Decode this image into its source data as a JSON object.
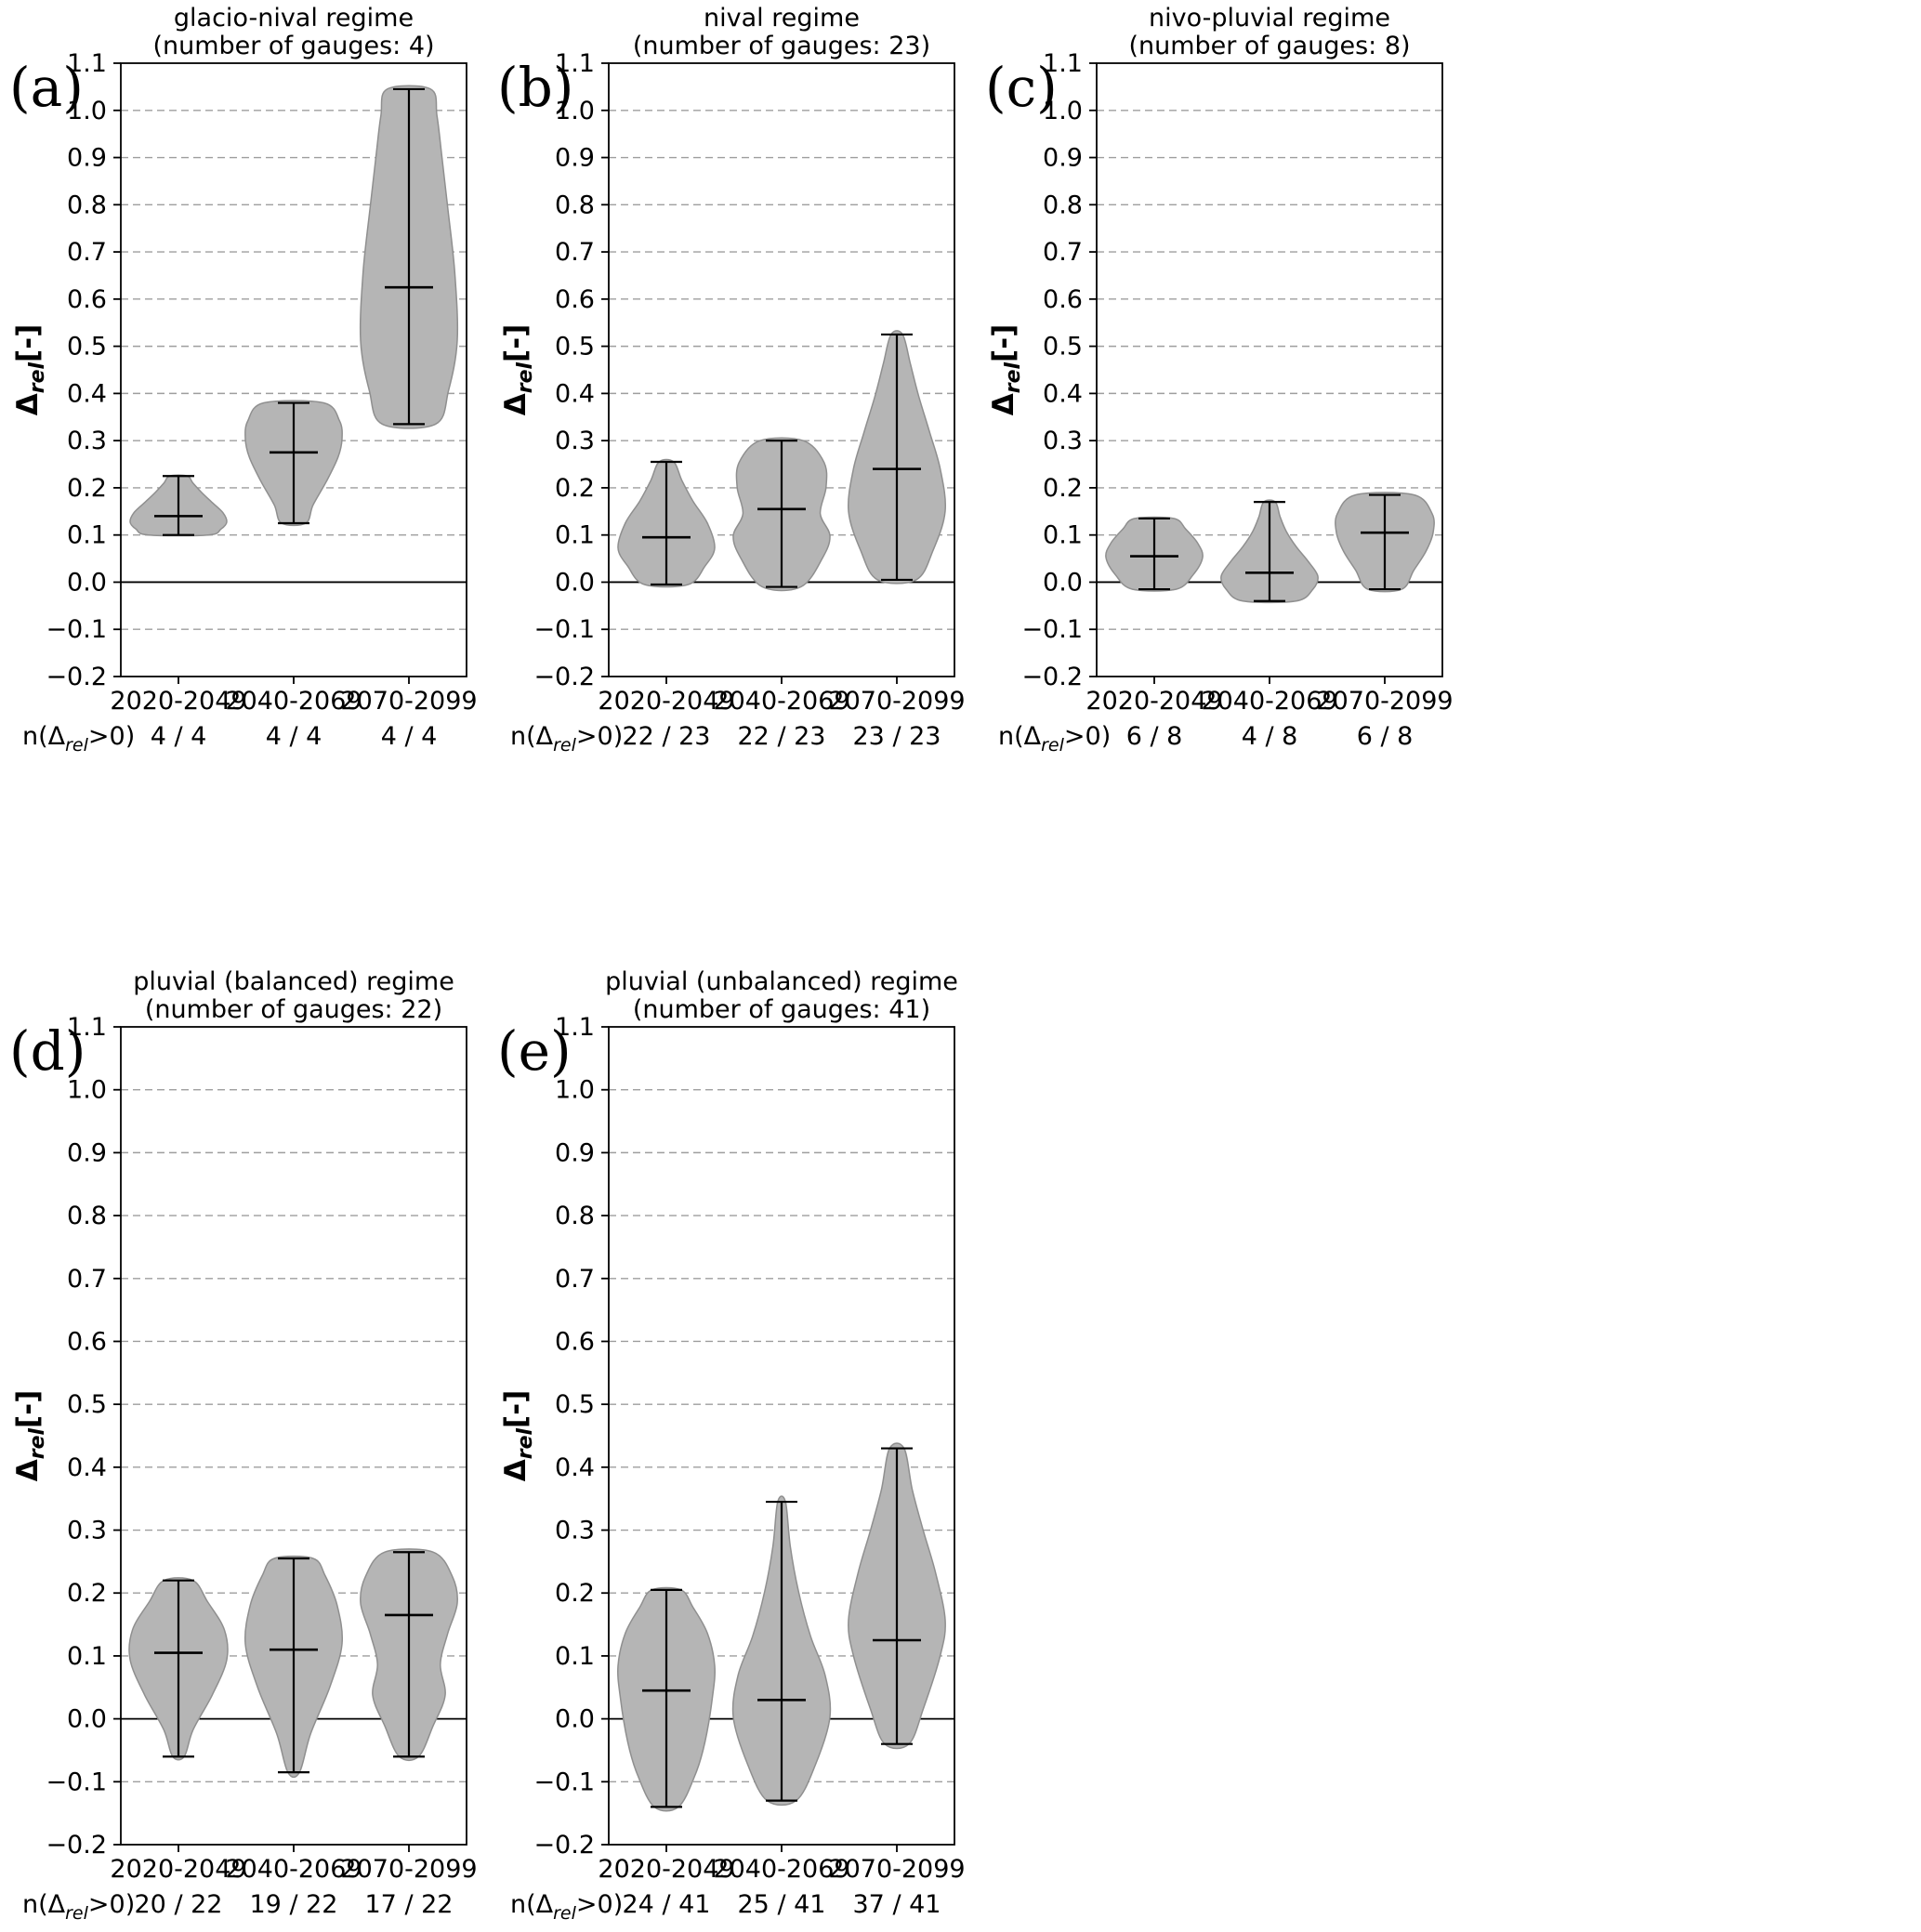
{
  "figure": {
    "background": "#ffffff",
    "ylim": [
      -0.2,
      1.1
    ],
    "y_ticks": [
      {
        "label": "1.1",
        "value": 1.1
      },
      {
        "label": "1.0",
        "value": 1.0
      },
      {
        "label": "0.9",
        "value": 0.9
      },
      {
        "label": "0.8",
        "value": 0.8
      },
      {
        "label": "0.7",
        "value": 0.7
      },
      {
        "label": "0.6",
        "value": 0.6
      },
      {
        "label": "0.5",
        "value": 0.5
      },
      {
        "label": "0.4",
        "value": 0.4
      },
      {
        "label": "0.3",
        "value": 0.3
      },
      {
        "label": "0.2",
        "value": 0.2
      },
      {
        "label": "0.1",
        "value": 0.1
      },
      {
        "label": "0.0",
        "value": 0.0
      },
      {
        "label": "−0.1",
        "value": -0.1
      },
      {
        "label": "−0.2",
        "value": -0.2
      }
    ],
    "y_axis_label": {
      "delta": "Δ",
      "sub": "rel",
      "unit": "[-]"
    },
    "n_row_label": {
      "prefix": "n(Δ",
      "sub": "rel",
      "suffix": ">0)"
    },
    "categories": [
      "2020-2049",
      "2040-2069",
      "2070-2099"
    ],
    "colors": {
      "violin_fill": "#b5b5b5",
      "violin_stroke": "#8f8f8f",
      "grid": "#9e9e9e",
      "axis": "#000000",
      "zero_line": "#000000"
    }
  },
  "chart_data": [
    {
      "type": "violin",
      "id": "a",
      "panel_label": "(a)",
      "title": "glacio-nival regime",
      "subtitle": "(number of gauges: 4)",
      "row": 0,
      "categories": [
        "2020-2049",
        "2040-2069",
        "2070-2099"
      ],
      "ylabel": "Δrel[-]",
      "ylim": [
        -0.2,
        1.1
      ],
      "violins": [
        {
          "category": "2020-2049",
          "min": 0.1,
          "max": 0.225,
          "median": 0.14,
          "n_label": "4 / 4",
          "profile": [
            [
              0,
              0.62
            ],
            [
              0.1,
              0.88
            ],
            [
              0.22,
              1.0
            ],
            [
              0.38,
              0.92
            ],
            [
              0.55,
              0.7
            ],
            [
              0.72,
              0.48
            ],
            [
              0.88,
              0.3
            ],
            [
              1,
              0.18
            ]
          ]
        },
        {
          "category": "2040-2069",
          "min": 0.125,
          "max": 0.38,
          "median": 0.275,
          "n_label": "4 / 4",
          "profile": [
            [
              0,
              0.25
            ],
            [
              0.15,
              0.4
            ],
            [
              0.35,
              0.68
            ],
            [
              0.55,
              0.92
            ],
            [
              0.7,
              1.0
            ],
            [
              0.85,
              0.95
            ],
            [
              1,
              0.62
            ]
          ]
        },
        {
          "category": "2070-2099",
          "min": 0.335,
          "max": 1.045,
          "median": 0.625,
          "n_label": "4 / 4",
          "profile": [
            [
              0,
              0.55
            ],
            [
              0.1,
              0.82
            ],
            [
              0.25,
              1.0
            ],
            [
              0.45,
              0.95
            ],
            [
              0.65,
              0.8
            ],
            [
              0.8,
              0.68
            ],
            [
              0.92,
              0.58
            ],
            [
              1,
              0.45
            ]
          ]
        }
      ]
    },
    {
      "type": "violin",
      "id": "b",
      "panel_label": "(b)",
      "title": "nival regime",
      "subtitle": "(number of gauges: 23)",
      "row": 0,
      "categories": [
        "2020-2049",
        "2040-2069",
        "2070-2099"
      ],
      "ylabel": "Δrel[-]",
      "ylim": [
        -0.2,
        1.1
      ],
      "violins": [
        {
          "category": "2020-2049",
          "min": -0.005,
          "max": 0.255,
          "median": 0.095,
          "n_label": "22 / 23",
          "profile": [
            [
              0,
              0.45
            ],
            [
              0.15,
              0.8
            ],
            [
              0.3,
              1.0
            ],
            [
              0.5,
              0.85
            ],
            [
              0.68,
              0.55
            ],
            [
              0.85,
              0.32
            ],
            [
              1,
              0.15
            ]
          ]
        },
        {
          "category": "2040-2069",
          "min": -0.01,
          "max": 0.3,
          "median": 0.155,
          "n_label": "22 / 23",
          "profile": [
            [
              0,
              0.4
            ],
            [
              0.2,
              0.85
            ],
            [
              0.35,
              1.0
            ],
            [
              0.5,
              0.8
            ],
            [
              0.68,
              0.92
            ],
            [
              0.85,
              0.88
            ],
            [
              1,
              0.45
            ]
          ]
        },
        {
          "category": "2070-2099",
          "min": 0.005,
          "max": 0.525,
          "median": 0.24,
          "n_label": "23 / 23",
          "profile": [
            [
              0,
              0.4
            ],
            [
              0.12,
              0.75
            ],
            [
              0.28,
              1.0
            ],
            [
              0.45,
              0.9
            ],
            [
              0.6,
              0.68
            ],
            [
              0.75,
              0.45
            ],
            [
              0.88,
              0.28
            ],
            [
              1,
              0.12
            ]
          ]
        }
      ]
    },
    {
      "type": "violin",
      "id": "c",
      "panel_label": "(c)",
      "title": "nivo-pluvial regime",
      "subtitle": "(number of gauges: 8)",
      "row": 0,
      "categories": [
        "2020-2049",
        "2040-2069",
        "2070-2099"
      ],
      "ylabel": "Δrel[-]",
      "ylim": [
        -0.2,
        1.1
      ],
      "violins": [
        {
          "category": "2020-2049",
          "min": -0.015,
          "max": 0.135,
          "median": 0.055,
          "n_label": "6 / 8",
          "profile": [
            [
              0,
              0.45
            ],
            [
              0.2,
              0.8
            ],
            [
              0.45,
              1.0
            ],
            [
              0.65,
              0.9
            ],
            [
              0.85,
              0.65
            ],
            [
              1,
              0.4
            ]
          ]
        },
        {
          "category": "2040-2069",
          "min": -0.04,
          "max": 0.17,
          "median": 0.02,
          "n_label": "4 / 8",
          "profile": [
            [
              0,
              0.55
            ],
            [
              0.12,
              0.9
            ],
            [
              0.25,
              1.0
            ],
            [
              0.4,
              0.8
            ],
            [
              0.55,
              0.55
            ],
            [
              0.7,
              0.35
            ],
            [
              0.85,
              0.22
            ],
            [
              1,
              0.12
            ]
          ]
        },
        {
          "category": "2070-2099",
          "min": -0.015,
          "max": 0.185,
          "median": 0.105,
          "n_label": "6 / 8",
          "profile": [
            [
              0,
              0.35
            ],
            [
              0.2,
              0.6
            ],
            [
              0.4,
              0.85
            ],
            [
              0.6,
              1.0
            ],
            [
              0.8,
              0.98
            ],
            [
              1,
              0.6
            ]
          ]
        }
      ]
    },
    {
      "type": "violin",
      "id": "d",
      "panel_label": "(d)",
      "title": "pluvial (balanced) regime",
      "subtitle": "(number of gauges: 22)",
      "row": 1,
      "categories": [
        "2020-2049",
        "2040-2069",
        "2070-2099"
      ],
      "ylabel": "Δrel[-]",
      "ylim": [
        -0.2,
        1.1
      ],
      "violins": [
        {
          "category": "2020-2049",
          "min": -0.06,
          "max": 0.22,
          "median": 0.105,
          "n_label": "20 / 22",
          "profile": [
            [
              0,
              0.12
            ],
            [
              0.15,
              0.3
            ],
            [
              0.35,
              0.7
            ],
            [
              0.55,
              1.0
            ],
            [
              0.72,
              0.95
            ],
            [
              0.88,
              0.6
            ],
            [
              1,
              0.3
            ]
          ]
        },
        {
          "category": "2040-2069",
          "min": -0.085,
          "max": 0.255,
          "median": 0.11,
          "n_label": "19 / 22",
          "profile": [
            [
              0,
              0.12
            ],
            [
              0.18,
              0.35
            ],
            [
              0.4,
              0.75
            ],
            [
              0.6,
              1.0
            ],
            [
              0.78,
              0.9
            ],
            [
              0.92,
              0.65
            ],
            [
              1,
              0.4
            ]
          ]
        },
        {
          "category": "2070-2099",
          "min": -0.06,
          "max": 0.265,
          "median": 0.165,
          "n_label": "17 / 22",
          "profile": [
            [
              0,
              0.2
            ],
            [
              0.15,
              0.5
            ],
            [
              0.3,
              0.75
            ],
            [
              0.45,
              0.65
            ],
            [
              0.6,
              0.8
            ],
            [
              0.75,
              1.0
            ],
            [
              0.88,
              0.9
            ],
            [
              1,
              0.5
            ]
          ]
        }
      ]
    },
    {
      "type": "violin",
      "id": "e",
      "panel_label": "(e)",
      "title": "pluvial (unbalanced) regime",
      "subtitle": "(number of gauges: 41)",
      "row": 1,
      "categories": [
        "2020-2049",
        "2040-2069",
        "2070-2099"
      ],
      "ylabel": "Δrel[-]",
      "ylim": [
        -0.2,
        1.1
      ],
      "violins": [
        {
          "category": "2020-2049",
          "min": -0.14,
          "max": 0.205,
          "median": 0.045,
          "n_label": "24 / 41",
          "profile": [
            [
              0,
              0.25
            ],
            [
              0.15,
              0.6
            ],
            [
              0.3,
              0.8
            ],
            [
              0.5,
              0.95
            ],
            [
              0.65,
              1.0
            ],
            [
              0.8,
              0.85
            ],
            [
              0.92,
              0.55
            ],
            [
              1,
              0.3
            ]
          ]
        },
        {
          "category": "2040-2069",
          "min": -0.13,
          "max": 0.345,
          "median": 0.03,
          "n_label": "25 / 41",
          "profile": [
            [
              0,
              0.3
            ],
            [
              0.12,
              0.7
            ],
            [
              0.28,
              1.0
            ],
            [
              0.42,
              0.9
            ],
            [
              0.55,
              0.6
            ],
            [
              0.7,
              0.35
            ],
            [
              0.85,
              0.18
            ],
            [
              1,
              0.08
            ]
          ]
        },
        {
          "category": "2070-2099",
          "min": -0.04,
          "max": 0.43,
          "median": 0.125,
          "n_label": "37 / 41",
          "profile": [
            [
              0,
              0.25
            ],
            [
              0.12,
              0.55
            ],
            [
              0.3,
              0.9
            ],
            [
              0.42,
              1.0
            ],
            [
              0.58,
              0.8
            ],
            [
              0.72,
              0.55
            ],
            [
              0.86,
              0.32
            ],
            [
              1,
              0.15
            ]
          ]
        }
      ]
    }
  ]
}
